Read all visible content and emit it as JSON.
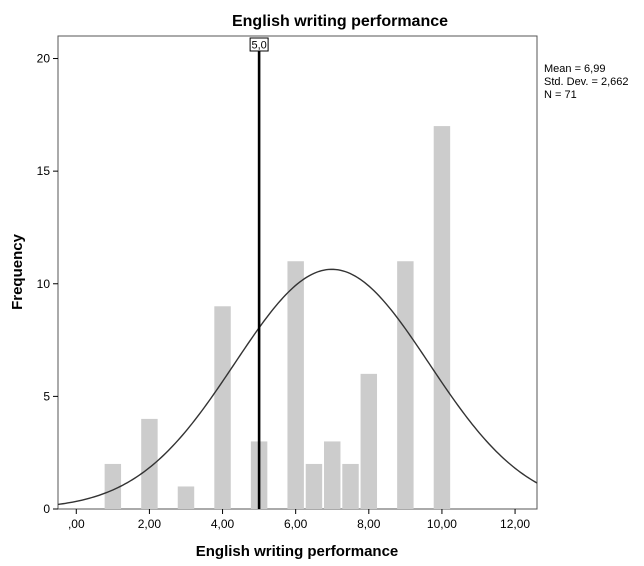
{
  "chart_data": {
    "type": "bar",
    "title": "English writing performance",
    "xlabel": "English writing performance",
    "ylabel": "Frequency",
    "x": [
      1,
      2,
      3,
      4,
      5,
      6,
      6.5,
      7,
      7.5,
      8,
      9,
      10
    ],
    "values": [
      2,
      4,
      1,
      9,
      3,
      11,
      2,
      3,
      2,
      6,
      11,
      17
    ],
    "bar_width": 0.45,
    "xlim": [
      -0.5,
      12.6
    ],
    "ylim": [
      0,
      21
    ],
    "x_ticks": [
      0,
      2,
      4,
      6,
      8,
      10,
      12
    ],
    "x_tick_labels": [
      ",00",
      "2,00",
      "4,00",
      "6,00",
      "8,00",
      "10,00",
      "12,00"
    ],
    "y_ticks": [
      0,
      5,
      10,
      15,
      20
    ],
    "y_tick_labels": [
      "0",
      "5",
      "10",
      "15",
      "20"
    ],
    "grid": false,
    "normal_curve": {
      "mean": 6.99,
      "sd": 2.662,
      "n": 71,
      "bin_width": 1
    },
    "reference_line": {
      "x": 5.0,
      "label": "5,0"
    },
    "stats_box": {
      "mean": "Mean = 6,99",
      "sd": "Std. Dev. = 2,662",
      "n": "N = 71"
    },
    "legend": "none",
    "colors": {
      "bar": "#cccccc",
      "curve": "#333333",
      "reference": "#000000",
      "frame": "#555555"
    }
  }
}
